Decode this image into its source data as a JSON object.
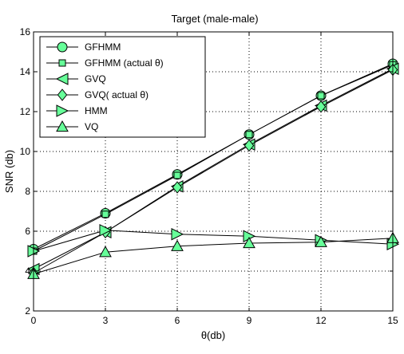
{
  "chart_data": {
    "type": "line",
    "title": "Target (male-male)",
    "xlabel": "θ(db)",
    "ylabel": "SNR (db)",
    "x": [
      0,
      3,
      6,
      9,
      12,
      15
    ],
    "xticks": [
      "0",
      "3",
      "6",
      "9",
      "12",
      "15"
    ],
    "yticks": [
      "2",
      "4",
      "6",
      "8",
      "10",
      "12",
      "14",
      "16"
    ],
    "xlim": [
      0,
      15
    ],
    "ylim": [
      2,
      16
    ],
    "grid": true,
    "legend_position": "top-left",
    "marker_fill": "#66ff99",
    "series": [
      {
        "name": "GFHMM",
        "marker": "circle",
        "values": [
          5.1,
          6.9,
          8.85,
          10.85,
          12.8,
          14.4
        ]
      },
      {
        "name": "GFHMM (actual θ)",
        "marker": "square",
        "values": [
          5.0,
          6.85,
          8.8,
          10.85,
          12.8,
          14.35
        ]
      },
      {
        "name": "GVQ",
        "marker": "triangle-left",
        "values": [
          4.1,
          5.95,
          8.25,
          10.35,
          12.3,
          14.15
        ]
      },
      {
        "name": "GVQ( actual θ)",
        "marker": "diamond",
        "values": [
          3.9,
          5.95,
          8.2,
          10.3,
          12.25,
          14.1
        ]
      },
      {
        "name": "HMM",
        "marker": "triangle-right",
        "values": [
          5.0,
          6.05,
          5.85,
          5.75,
          5.55,
          5.35
        ]
      },
      {
        "name": "VQ",
        "marker": "triangle-up",
        "values": [
          3.85,
          4.95,
          5.25,
          5.4,
          5.45,
          5.65
        ]
      }
    ]
  }
}
